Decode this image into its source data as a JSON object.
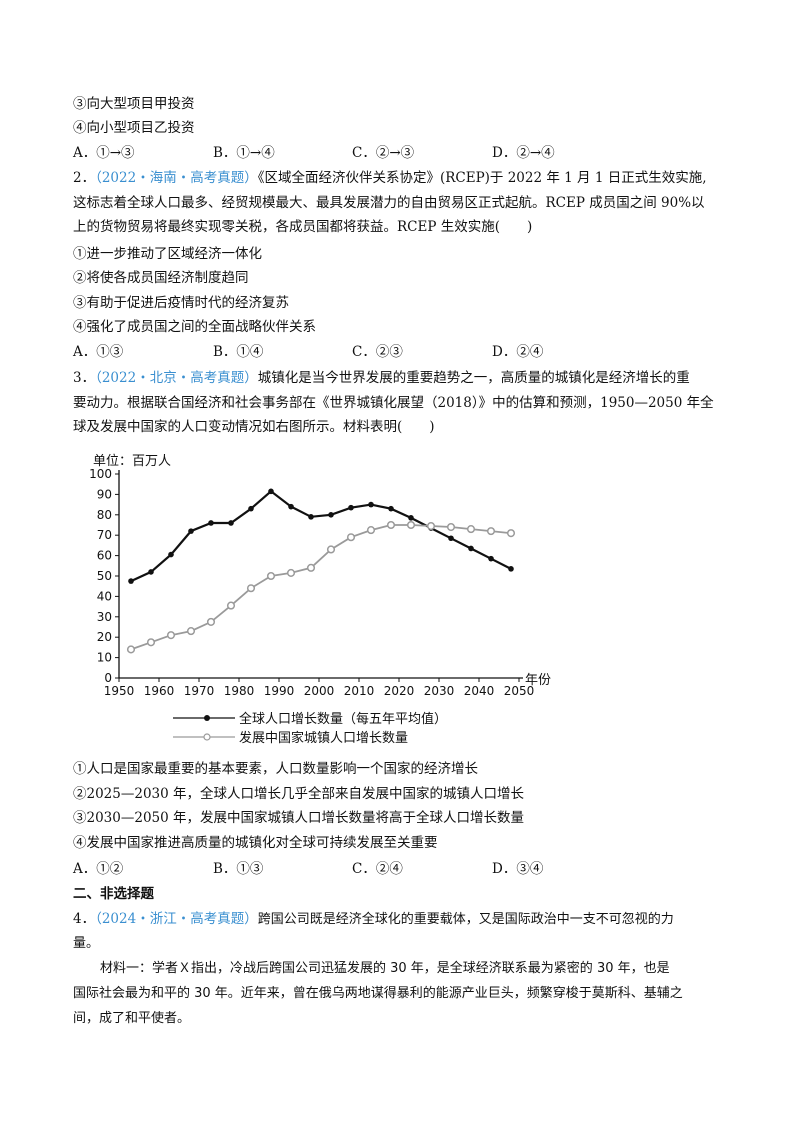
{
  "q1": {
    "item3": "③向大型项目甲投资",
    "item4": "④向小型项目乙投资",
    "options": [
      "A．①→③",
      "B．①→④",
      "C．②→③",
      "D．②→④"
    ]
  },
  "q2": {
    "number": "2．",
    "source": "（2022・海南・高考真题）",
    "stem_1": "《区域全面经济伙伴关系协定》(RCEP)于 2022 年 1 月 1 日正式生效实施,",
    "stem_2": "这标志着全球人口最多、经贸规模最大、最具发展潜力的自由贸易区正式起航。RCEP 成员国之间 90%以",
    "stem_3": "上的货物贸易将最终实现零关税，各成员国都将获益。RCEP 生效实施(　　)",
    "items": [
      "①进一步推动了区域经济一体化",
      "②将使各成员国经济制度趋同",
      "③有助于促进后疫情时代的经济复苏",
      "④强化了成员国之间的全面战略伙伴关系"
    ],
    "options": [
      "A．①③",
      "B．①④",
      "C．②③",
      "D．②④"
    ]
  },
  "q3": {
    "number": "3．",
    "source": "（2022・北京・高考真题）",
    "stem_1": "城镇化是当今世界发展的重要趋势之一，高质量的城镇化是经济增长的重",
    "stem_2": "要动力。根据联合国经济和社会事务部在《世界城镇化展望（2018）》中的估算和预测，1950—2050 年全",
    "stem_3": "球及发展中国家的人口变动情况如右图所示。材料表明(　　)",
    "items": [
      "①人口是国家最重要的基本要素，人口数量影响一个国家的经济增长",
      "②2025—2030 年，全球人口增长几乎全部来自发展中国家的城镇人口增长",
      "③2030—2050 年，发展中国家城镇人口增长数量将高于全球人口增长数量",
      "④发展中国家推进高质量的城镇化对全球可持续发展至关重要"
    ],
    "options": [
      "A．①②",
      "B．①③",
      "C．②④",
      "D．③④"
    ]
  },
  "section2": "二、非选择题",
  "q4": {
    "number": "4．",
    "source": "（2024・浙江・高考真题）",
    "stem_1": "跨国公司既是经济全球化的重要载体，又是国际政治中一支不可忽视的力",
    "stem_2": "量。",
    "material_1": "材料一：学者Ｘ指出，冷战后跨国公司迅猛发展的 30 年，是全球经济联系最为紧密的 30 年，也是",
    "material_2": "国际社会最为和平的 30 年。近年来，曾在俄乌两地谋得暴利的能源产业巨头，频繁穿梭于莫斯科、基辅之",
    "material_3": "间，成了和平使者。"
  },
  "chart_data": {
    "type": "line",
    "unit_label": "单位：百万人",
    "xlabel": "年份",
    "ylim": [
      0,
      100
    ],
    "xlim": [
      1950,
      2050
    ],
    "x_ticks": [
      1950,
      1960,
      1970,
      1980,
      1990,
      2000,
      2010,
      2020,
      2030,
      2040,
      2050
    ],
    "y_ticks": [
      0,
      10,
      20,
      30,
      40,
      50,
      60,
      70,
      80,
      90,
      100
    ],
    "grid": false,
    "legend_position": "bottom",
    "series": [
      {
        "name": "全球人口增长数量（每五年平均值）",
        "marker": "filled",
        "color": "#111111",
        "x": [
          1953,
          1958,
          1963,
          1968,
          1973,
          1978,
          1983,
          1988,
          1993,
          1998,
          2003,
          2008,
          2013,
          2018,
          2023,
          2028,
          2033,
          2038,
          2043,
          2048
        ],
        "values": [
          47.5,
          52,
          60.5,
          72,
          76,
          76,
          83,
          91.5,
          84,
          79,
          80,
          83.5,
          85,
          83,
          78.5,
          73.5,
          68.5,
          63.5,
          58.5,
          53.5
        ]
      },
      {
        "name": "发展中国家城镇人口增长数量",
        "marker": "hollow",
        "color": "#9a9a9a",
        "x": [
          1953,
          1958,
          1963,
          1968,
          1973,
          1978,
          1983,
          1988,
          1993,
          1998,
          2003,
          2008,
          2013,
          2018,
          2023,
          2028,
          2033,
          2038,
          2043,
          2048
        ],
        "values": [
          14,
          17.5,
          21,
          23,
          27.5,
          35.5,
          44,
          50,
          51.5,
          54,
          63,
          69,
          72.5,
          75,
          75,
          74.5,
          74,
          73,
          72,
          71
        ]
      }
    ]
  }
}
